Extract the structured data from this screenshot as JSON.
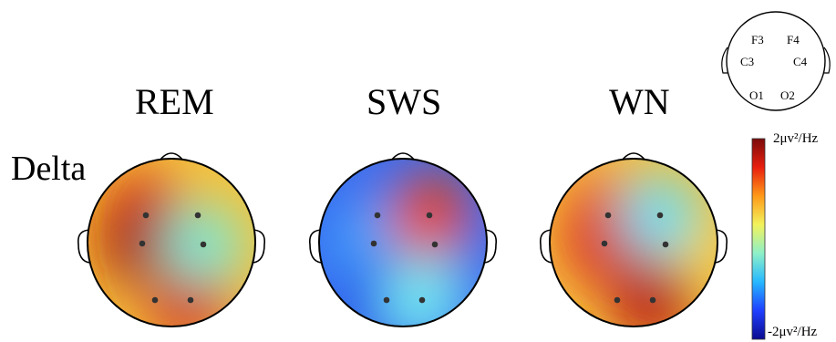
{
  "band_label": "Delta",
  "colorbar": {
    "max_label": "2μv²/Hz",
    "min_label": "-2μv²/Hz",
    "colors": [
      "#0b0b8f",
      "#1f3fff",
      "#26b8ff",
      "#8ef0c8",
      "#f2f25c",
      "#ff9a1a",
      "#e81e0e",
      "#7a0b0b"
    ]
  },
  "reference_map": {
    "electrodes": [
      "F3",
      "F4",
      "C3",
      "C4",
      "O1",
      "O2"
    ]
  },
  "maps": [
    {
      "condition": "REM",
      "blobs": [
        {
          "color": "#f5e34a",
          "near": "C4"
        },
        {
          "color": "#d8200f",
          "near": "F3"
        },
        {
          "color": "#a50d0d",
          "near": "C3"
        },
        {
          "color": "#d01a10",
          "near": "O2"
        },
        {
          "color": "#7fe6d0",
          "near": "C4"
        }
      ]
    },
    {
      "condition": "SWS",
      "blobs": [
        {
          "color": "#42a8ff",
          "near": "C3"
        },
        {
          "color": "#1840e8",
          "near": "O1"
        },
        {
          "color": "#2b7df5",
          "near": "C4"
        },
        {
          "color": "#74eaf0",
          "near": "O2"
        },
        {
          "color": "#e8450f",
          "near": "F4"
        }
      ]
    },
    {
      "condition": "WN",
      "blobs": [
        {
          "color": "#f8e950",
          "near": "C4"
        },
        {
          "color": "#e8451a",
          "near": "F3"
        },
        {
          "color": "#d8251a",
          "near": "C3"
        },
        {
          "color": "#b81812",
          "near": "O2"
        },
        {
          "color": "#6fdcf0",
          "near": "F4"
        }
      ]
    }
  ]
}
